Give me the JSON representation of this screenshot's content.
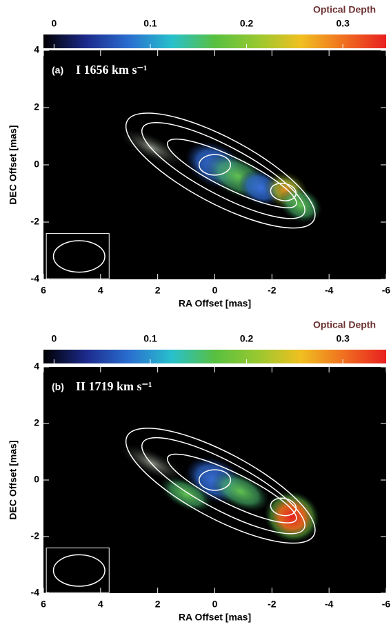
{
  "chart_data": [
    {
      "type": "image",
      "panel_label": "(a)",
      "title": "I  1656 km s⁻¹",
      "xlabel": "RA Offset [mas]",
      "ylabel": "DEC Offset [mas]",
      "xlim": [
        6,
        -6
      ],
      "ylim": [
        -4,
        4
      ],
      "xticks": [
        6,
        4,
        2,
        0,
        -2,
        -4,
        -6
      ],
      "yticks": [
        4,
        2,
        0,
        -2,
        -4
      ],
      "colorbar": {
        "label": "Optical Depth",
        "lim": [
          -0.011,
          0.345
        ],
        "ticks": [
          0,
          0.1,
          0.2,
          0.3
        ],
        "colormap": [
          "#000000",
          "#1c2a8c",
          "#2a6fd0",
          "#28c0cc",
          "#58c040",
          "#98c830",
          "#f0c020",
          "#f07020",
          "#e82020"
        ]
      }
    },
    {
      "type": "image",
      "panel_label": "(b)",
      "title": "II 1719 km s⁻¹",
      "xlabel": "RA Offset [mas]",
      "ylabel": "DEC Offset [mas]",
      "xlim": [
        6,
        -6
      ],
      "ylim": [
        -4,
        4
      ],
      "xticks": [
        6,
        4,
        2,
        0,
        -2,
        -4,
        -6
      ],
      "yticks": [
        4,
        2,
        0,
        -2,
        -4
      ],
      "colorbar": {
        "label": "Optical Depth",
        "lim": [
          -0.011,
          0.345
        ],
        "ticks": [
          0,
          0.1,
          0.2,
          0.3
        ],
        "colormap": [
          "#000000",
          "#1c2a8c",
          "#2a6fd0",
          "#28c0cc",
          "#58c040",
          "#98c830",
          "#f0c020",
          "#f07020",
          "#e82020"
        ]
      }
    }
  ]
}
